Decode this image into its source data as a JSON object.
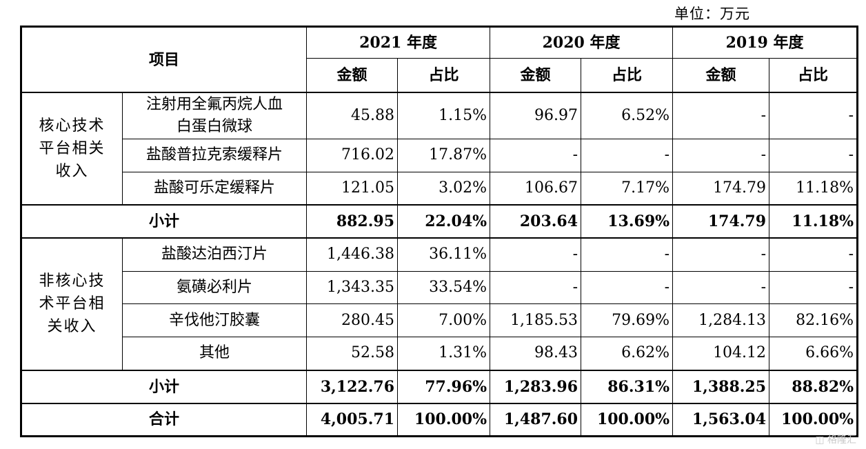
{
  "unit_label": "单位：万元",
  "header": {
    "item": "项目",
    "years": [
      "2021 年度",
      "2020 年度",
      "2019 年度"
    ],
    "amount": "金额",
    "ratio": "占比"
  },
  "groups": [
    {
      "label": "核心技术平台相关收入",
      "label_lines": [
        "核心技术",
        "平台相关",
        "收入"
      ],
      "rows": [
        {
          "name": "注射用全氟丙烷人血白蛋白微球",
          "name_lines": [
            "注射用全氟丙烷人血",
            "白蛋白微球"
          ],
          "v": [
            "45.88",
            "1.15%",
            "96.97",
            "6.52%",
            "-",
            "-"
          ]
        },
        {
          "name": "盐酸普拉克索缓释片",
          "v": [
            "716.02",
            "17.87%",
            "-",
            "-",
            "-",
            "-"
          ]
        },
        {
          "name": "盐酸可乐定缓释片",
          "v": [
            "121.05",
            "3.02%",
            "106.67",
            "7.17%",
            "174.79",
            "11.18%"
          ]
        }
      ],
      "subtotal": {
        "label": "小计",
        "v": [
          "882.95",
          "22.04%",
          "203.64",
          "13.69%",
          "174.79",
          "11.18%"
        ]
      }
    },
    {
      "label": "非核心技术平台相关收入",
      "label_lines": [
        "非核心技",
        "术平台相",
        "关收入"
      ],
      "rows": [
        {
          "name": "盐酸达泊西汀片",
          "v": [
            "1,446.38",
            "36.11%",
            "-",
            "-",
            "-",
            "-"
          ]
        },
        {
          "name": "氨磺必利片",
          "v": [
            "1,343.35",
            "33.54%",
            "-",
            "-",
            "-",
            "-"
          ]
        },
        {
          "name": "辛伐他汀胶囊",
          "v": [
            "280.45",
            "7.00%",
            "1,185.53",
            "79.69%",
            "1,284.13",
            "82.16%"
          ]
        },
        {
          "name": "其他",
          "v": [
            "52.58",
            "1.31%",
            "98.43",
            "6.62%",
            "104.12",
            "6.66%"
          ]
        }
      ],
      "subtotal": {
        "label": "小计",
        "v": [
          "3,122.76",
          "77.96%",
          "1,283.96",
          "86.31%",
          "1,388.25",
          "88.82%"
        ]
      }
    }
  ],
  "total": {
    "label": "合计",
    "v": [
      "4,005.71",
      "100.00%",
      "1,487.60",
      "100.00%",
      "1,563.04",
      "100.00%"
    ]
  },
  "watermark": "格隆汇"
}
